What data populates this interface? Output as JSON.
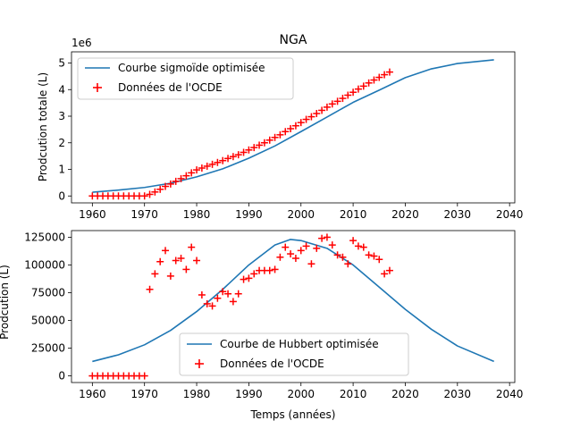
{
  "chart_data": [
    {
      "type": "line",
      "title": "NGA",
      "xlabel": "",
      "ylabel": "Prodcution totale (L)",
      "scale_label": "1e6",
      "xlim": [
        1956,
        2041
      ],
      "ylim": [
        -0.26,
        5.42
      ],
      "x_ticks": [
        1960,
        1970,
        1980,
        1990,
        2000,
        2010,
        2020,
        2030,
        2040
      ],
      "y_ticks": [
        0,
        1,
        2,
        3,
        4,
        5
      ],
      "legend": "top-left",
      "curve": {
        "name": "Courbe sigmoïde optimisée",
        "color": "#1f77b4",
        "x": [
          1960,
          1965,
          1970,
          1975,
          1980,
          1985,
          1990,
          1995,
          2000,
          2005,
          2010,
          2015,
          2020,
          2025,
          2030,
          2037
        ],
        "y": [
          0.14,
          0.22,
          0.32,
          0.48,
          0.72,
          1.02,
          1.42,
          1.88,
          2.42,
          2.97,
          3.52,
          3.98,
          4.45,
          4.78,
          4.98,
          5.12
        ]
      },
      "points": {
        "name": "Données de l'OCDE",
        "color": "#ff0000",
        "x": [
          1960,
          1961,
          1962,
          1963,
          1964,
          1965,
          1966,
          1967,
          1968,
          1969,
          1970,
          1971,
          1972,
          1973,
          1974,
          1975,
          1976,
          1977,
          1978,
          1979,
          1980,
          1981,
          1982,
          1983,
          1984,
          1985,
          1986,
          1987,
          1988,
          1989,
          1990,
          1991,
          1992,
          1993,
          1994,
          1995,
          1996,
          1997,
          1998,
          1999,
          2000,
          2001,
          2002,
          2003,
          2004,
          2005,
          2006,
          2007,
          2008,
          2009,
          2010,
          2011,
          2012,
          2013,
          2014,
          2015,
          2016,
          2017
        ],
        "y": [
          0,
          0,
          0,
          0,
          0,
          0,
          0,
          0,
          0,
          0,
          0,
          0.06,
          0.15,
          0.25,
          0.36,
          0.45,
          0.55,
          0.65,
          0.76,
          0.87,
          0.98,
          1.05,
          1.12,
          1.19,
          1.26,
          1.33,
          1.41,
          1.48,
          1.55,
          1.64,
          1.73,
          1.82,
          1.91,
          2.0,
          2.1,
          2.2,
          2.3,
          2.42,
          2.53,
          2.64,
          2.76,
          2.88,
          2.98,
          3.1,
          3.22,
          3.34,
          3.46,
          3.56,
          3.67,
          3.79,
          3.9,
          4.02,
          4.13,
          4.25,
          4.36,
          4.46,
          4.56,
          4.66
        ]
      }
    },
    {
      "type": "line",
      "title": "",
      "xlabel": "Temps (années)",
      "ylabel": "Prodcution (L)",
      "xlim": [
        1956,
        2041
      ],
      "ylim": [
        -6000,
        131000
      ],
      "x_ticks": [
        1960,
        1970,
        1980,
        1990,
        2000,
        2010,
        2020,
        2030,
        2040
      ],
      "y_ticks": [
        0,
        25000,
        50000,
        75000,
        100000,
        125000
      ],
      "legend": "lower-center",
      "curve": {
        "name": "Courbe de Hubbert optimisée",
        "color": "#1f77b4",
        "x": [
          1960,
          1965,
          1970,
          1975,
          1980,
          1985,
          1990,
          1995,
          1998,
          2000,
          2005,
          2010,
          2015,
          2020,
          2025,
          2030,
          2037
        ],
        "y": [
          13000,
          19000,
          28000,
          41000,
          58000,
          78000,
          100000,
          118000,
          123000,
          122000,
          115000,
          100000,
          80000,
          60000,
          42000,
          27000,
          13000
        ]
      },
      "points": {
        "name": "Données de l'OCDE",
        "color": "#ff0000",
        "x": [
          1960,
          1961,
          1962,
          1963,
          1964,
          1965,
          1966,
          1967,
          1968,
          1969,
          1970,
          1971,
          1972,
          1973,
          1974,
          1975,
          1976,
          1977,
          1978,
          1979,
          1980,
          1981,
          1982,
          1983,
          1984,
          1985,
          1986,
          1987,
          1988,
          1989,
          1990,
          1991,
          1992,
          1993,
          1994,
          1995,
          1996,
          1997,
          1998,
          1999,
          2000,
          2001,
          2002,
          2003,
          2004,
          2005,
          2006,
          2007,
          2008,
          2009,
          2010,
          2011,
          2012,
          2013,
          2014,
          2015,
          2016,
          2017
        ],
        "y": [
          0,
          0,
          0,
          0,
          0,
          0,
          0,
          0,
          0,
          0,
          0,
          78000,
          92000,
          103000,
          113000,
          90000,
          104000,
          106000,
          96000,
          116000,
          104000,
          73000,
          65000,
          63000,
          70000,
          76000,
          74000,
          67000,
          74000,
          87000,
          88000,
          92000,
          95000,
          95000,
          95000,
          96000,
          107000,
          116000,
          110000,
          106000,
          113000,
          117000,
          101000,
          115000,
          124000,
          125000,
          118000,
          109000,
          107000,
          101000,
          122000,
          117000,
          116000,
          109000,
          108000,
          105000,
          92000,
          95000
        ]
      }
    }
  ]
}
